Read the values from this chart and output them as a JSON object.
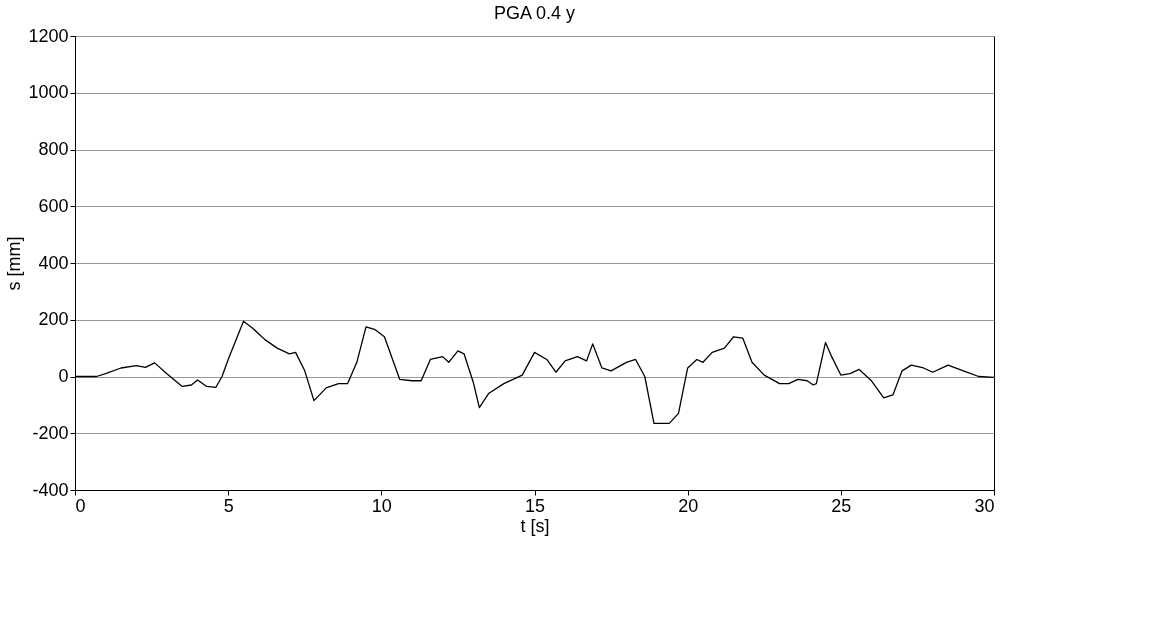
{
  "chart_data": {
    "type": "line",
    "title": "PGA 0.4 y",
    "xlabel": "t [s]",
    "ylabel": "s [mm]",
    "x": [
      0,
      0.7,
      1.0,
      1.5,
      2.0,
      2.3,
      2.6,
      3.0,
      3.5,
      3.8,
      4.0,
      4.3,
      4.6,
      4.8,
      5.0,
      5.5,
      5.8,
      6.2,
      6.6,
      7.0,
      7.2,
      7.5,
      7.8,
      8.2,
      8.6,
      8.9,
      9.2,
      9.5,
      9.8,
      10.1,
      10.3,
      10.6,
      11.0,
      11.3,
      11.6,
      12.0,
      12.2,
      12.5,
      12.7,
      13.0,
      13.2,
      13.5,
      14.0,
      14.3,
      14.6,
      15.0,
      15.4,
      15.7,
      16.0,
      16.4,
      16.7,
      16.9,
      17.2,
      17.5,
      18.0,
      18.3,
      18.6,
      18.9,
      19.4,
      19.7,
      20.0,
      20.3,
      20.5,
      20.8,
      21.2,
      21.5,
      21.8,
      22.1,
      22.5,
      23.0,
      23.3,
      23.6,
      23.9,
      24.1,
      24.2,
      24.5,
      24.7,
      25.0,
      25.3,
      25.6,
      26.0,
      26.4,
      26.7,
      27.0,
      27.3,
      27.7,
      28.0,
      28.5,
      29.0,
      29.5,
      30
    ],
    "series": [
      {
        "color": "#000000",
        "values": [
          0,
          0,
          10,
          30,
          38,
          32,
          48,
          10,
          -35,
          -30,
          -12,
          -35,
          -38,
          0,
          60,
          195,
          170,
          130,
          100,
          80,
          85,
          20,
          -85,
          -40,
          -25,
          -25,
          50,
          175,
          165,
          140,
          80,
          -10,
          -15,
          -15,
          60,
          70,
          50,
          90,
          80,
          -20,
          -110,
          -60,
          -25,
          -10,
          5,
          85,
          60,
          15,
          55,
          70,
          55,
          115,
          30,
          20,
          50,
          60,
          0,
          -165,
          -165,
          -130,
          30,
          60,
          50,
          85,
          100,
          140,
          135,
          50,
          5,
          -25,
          -25,
          -10,
          -15,
          -30,
          -25,
          120,
          70,
          5,
          10,
          25,
          -15,
          -75,
          -65,
          20,
          40,
          30,
          15,
          40,
          20,
          0,
          -3
        ]
      }
    ],
    "xlim": [
      0,
      30
    ],
    "xticks": [
      0,
      5,
      10,
      15,
      20,
      25,
      30
    ],
    "ylim": [
      -400,
      1200
    ],
    "yticks": [
      -400,
      -200,
      0,
      200,
      400,
      600,
      800,
      1000,
      1200
    ],
    "grid": "y",
    "legend": false,
    "marker": "none",
    "line_style": "solid"
  }
}
